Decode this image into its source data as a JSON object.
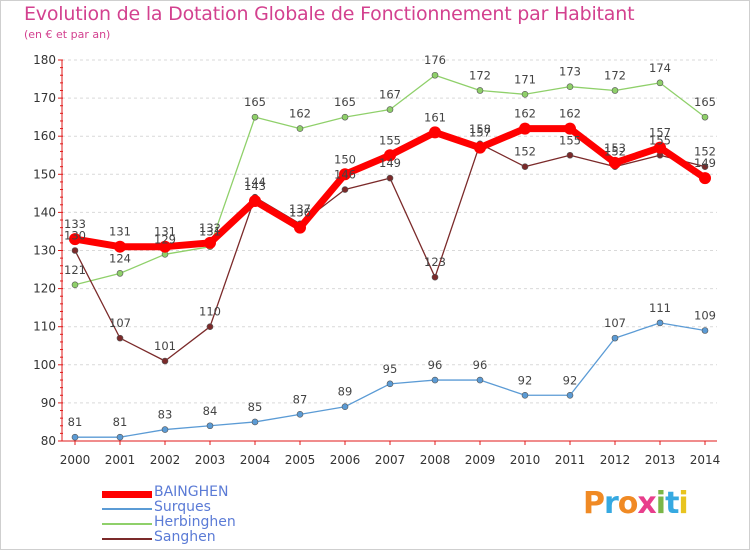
{
  "title": "Evolution de la Dotation Globale de Fonctionnement par Habitant",
  "subtitle": "(en € et par an)",
  "logo": {
    "text": "Proxiti",
    "colors": [
      "#f08a24",
      "#36a9e1",
      "#f08a24",
      "#e83e8c",
      "#7ab648",
      "#36a9e1",
      "#e8c41f"
    ]
  },
  "chart_data": {
    "type": "line",
    "x": [
      "2000",
      "2001",
      "2002",
      "2003",
      "2004",
      "2005",
      "2006",
      "2007",
      "2008",
      "2009",
      "2010",
      "2011",
      "2012",
      "2013",
      "2014"
    ],
    "ylim": [
      80,
      180
    ],
    "yticks": [
      "80",
      "90",
      "100",
      "110",
      "120",
      "130",
      "140",
      "150",
      "160",
      "170",
      "180"
    ],
    "grid": "horizontal dashed",
    "legend_position": "bottom-left",
    "series": [
      {
        "name": "BAINGHEN",
        "color": "#ff0000",
        "values": [
          133,
          131,
          131,
          132,
          143,
          136,
          150,
          155,
          161,
          157,
          162,
          162,
          153,
          157,
          149
        ],
        "labels": [
          "133",
          "131",
          "131",
          "132",
          "143",
          "136",
          "150",
          "155",
          "161",
          "157",
          "162",
          "162",
          "153",
          "157",
          "149"
        ]
      },
      {
        "name": "Surques",
        "color": "#5b9bd5",
        "values": [
          81,
          81,
          83,
          84,
          85,
          87,
          89,
          95,
          96,
          96,
          92,
          92,
          107,
          111,
          109
        ],
        "labels": [
          "81",
          "81",
          "83",
          "84",
          "85",
          "87",
          "89",
          "95",
          "96",
          "96",
          "92",
          "92",
          "107",
          "111",
          "109"
        ]
      },
      {
        "name": "Herbinghen",
        "color": "#8fd06a",
        "values": [
          121,
          124,
          129,
          131,
          165,
          162,
          165,
          167,
          176,
          172,
          171,
          173,
          172,
          174,
          165
        ],
        "labels": [
          "121",
          "124",
          "129",
          "131",
          "165",
          "162",
          "165",
          "167",
          "176",
          "172",
          "171",
          "173",
          "172",
          "174",
          "165"
        ]
      },
      {
        "name": "Sanghen",
        "color": "#7b2a2a",
        "values": [
          130,
          107,
          101,
          110,
          144,
          137,
          146,
          149,
          123,
          158,
          152,
          155,
          152,
          155,
          152
        ],
        "labels": [
          "130",
          "107",
          "101",
          "110",
          "144",
          "137",
          "146",
          "149",
          "123",
          "158",
          "152",
          "155",
          "152",
          "155",
          "152"
        ]
      }
    ]
  }
}
